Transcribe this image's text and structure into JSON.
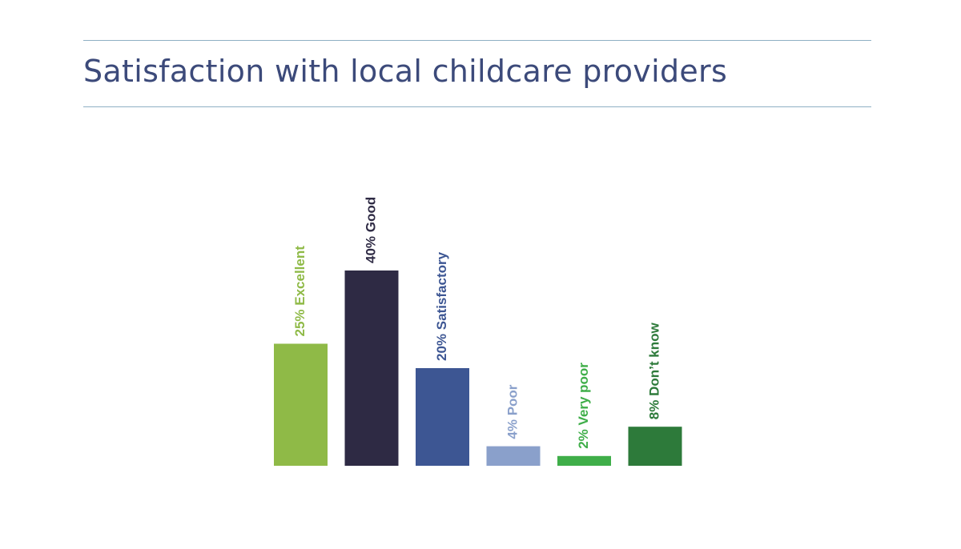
{
  "title": "Satisfaction with local childcare providers",
  "chart_data": {
    "type": "bar",
    "title": "Satisfaction with local childcare providers",
    "categories": [
      "Excellent",
      "Good",
      "Satisfactory",
      "Poor",
      "Very poor",
      "Don’t know"
    ],
    "values": [
      25,
      40,
      20,
      4,
      2,
      8
    ],
    "labels": [
      "25% Excellent",
      "40% Good",
      "20% Satisfactory",
      "4% Poor",
      "2% Very poor",
      "8% Don’t know"
    ],
    "unit": "%",
    "colors": [
      "#8fba47",
      "#2e2a44",
      "#3d5693",
      "#8aa0cb",
      "#3fae49",
      "#2d7a3a"
    ],
    "label_colors": [
      "#8fba47",
      "#2e2a44",
      "#3d5693",
      "#8aa0cb",
      "#3fae49",
      "#2d7a3a"
    ],
    "axes_visible": false,
    "grid": false,
    "legend": "none",
    "label_orientation": "vertical"
  }
}
